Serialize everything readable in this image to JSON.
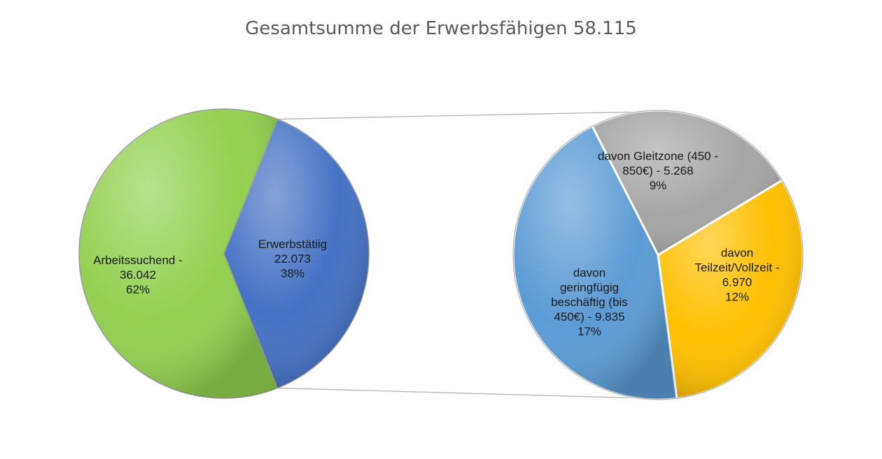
{
  "chart_data": [
    {
      "type": "pie",
      "title": "Gesamtsumme der Erwerbsfähigen 58.115",
      "slices": [
        {
          "name": "Arbeitssuchend",
          "value": 36042,
          "percent": 62,
          "color": "#92D050",
          "label_lines": [
            "Arbeitssuchend -",
            "36.042",
            "62%"
          ]
        },
        {
          "name": "Erwerbstätiig",
          "value": 22073,
          "percent": 38,
          "color": "#4472C4",
          "label_lines": [
            "Erwerbstätiig",
            "22.073",
            "38%"
          ]
        }
      ]
    },
    {
      "type": "pie",
      "slices": [
        {
          "name": "davon Gleitzone (450 - 850€)",
          "value": 5268,
          "percent": 9,
          "color": "#A5A5A5",
          "label_lines": [
            "davon Gleitzone (450 -",
            "850€) - 5.268",
            "9%"
          ]
        },
        {
          "name": "davon Teilzeit/Vollzeit",
          "value": 6970,
          "percent": 12,
          "color": "#FFC000",
          "label_lines": [
            "davon",
            "Teilzeit/Vollzeit -",
            "6.970",
            "12%"
          ]
        },
        {
          "name": "davon geringfügig beschäftig (bis 450€)",
          "value": 9835,
          "percent": 17,
          "color": "#5B9BD5",
          "label_lines": [
            "davon",
            "geringfügig",
            "beschäftig (bis",
            "450€) - 9.835",
            "17%"
          ]
        }
      ]
    }
  ]
}
